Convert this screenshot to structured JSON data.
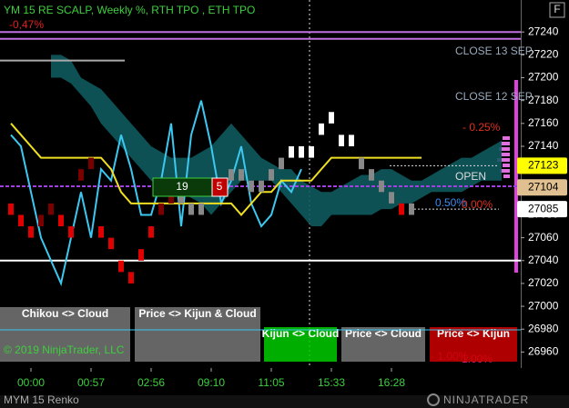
{
  "chart_data": {
    "type": "renko",
    "title": "YM 15 RE SCALP, Weekly %, RTH TPO , ETH TPO",
    "subtitle": "-0,47%",
    "instrument": "MYM 15 Renko",
    "copyright": "© 2019 NinjaTrader, LLC",
    "logo": "NINJATRADER",
    "corner_button": "F",
    "counter": [
      "19",
      "5"
    ],
    "annotations": [
      "CLOSE 13 SEP",
      "CLOSE 12 SEP",
      "- 0.25%",
      "OPEN",
      "0.50%",
      "0.00%",
      "- 1.00%",
      "1.00%"
    ],
    "buttons": [
      "Chikou <> Cloud",
      "Price <> Kijun & Cloud",
      "Kijun <> Cloud",
      "Price <> Cloud",
      "Price <> Kijun"
    ],
    "x": [
      null,
      null,
      "00:00",
      null,
      null,
      null,
      null,
      null,
      "00:57",
      null,
      null,
      null,
      null,
      null,
      "02:56",
      null,
      null,
      null,
      null,
      null,
      "09:10",
      null,
      null,
      null,
      null,
      null,
      "11:05",
      null,
      null,
      null,
      null,
      null,
      "15:33",
      null,
      null,
      null,
      null,
      null,
      "16:28",
      null,
      null,
      null,
      null,
      null,
      null,
      null,
      null,
      null,
      null,
      null
    ],
    "ylim": [
      26946,
      27268
    ],
    "yticks": [
      26960,
      26980,
      27000,
      27020,
      27040,
      27060,
      27080,
      27100,
      27120,
      27140,
      27160,
      27180,
      27200,
      27220,
      27240
    ],
    "bricks": {
      "open": [
        27090,
        27080,
        27070,
        27070,
        27080,
        27080,
        27070,
        27110,
        27120,
        27070,
        27060,
        27040,
        27030,
        27040,
        27060,
        27080,
        27090,
        27100,
        27090,
        27080,
        27110,
        27100,
        27110,
        27120,
        27110,
        27100,
        27110,
        27120,
        27130,
        27140,
        27130,
        27150,
        27160,
        27150,
        27140,
        27130,
        27120,
        27110,
        27100,
        27090,
        27090,
        null,
        null,
        null,
        null,
        null,
        null,
        null,
        null,
        null
      ],
      "close": [
        27080,
        27070,
        27060,
        27080,
        27090,
        27070,
        27060,
        27120,
        27130,
        27060,
        27050,
        27030,
        27020,
        27050,
        27070,
        27090,
        27100,
        27090,
        27080,
        27090,
        27100,
        27110,
        27120,
        27110,
        27100,
        27110,
        27120,
        27130,
        27140,
        27130,
        27140,
        27160,
        27170,
        27140,
        27150,
        27120,
        27110,
        27100,
        27090,
        27080,
        27080,
        null,
        null,
        null,
        null,
        null,
        null,
        null,
        null,
        null
      ],
      "colors": [
        "#e00000",
        "#e00000",
        "#e00000",
        "#7a0000",
        "#7a0000",
        "#e00000",
        "#e00000",
        "#7a0000",
        "#7a0000",
        "#e00000",
        "#e00000",
        "#e00000",
        "#e00000",
        "#e00000",
        "#e00000",
        "#7a0000",
        "#7a0000",
        "#888888",
        "#888888",
        "#888888",
        "#e00000",
        "#888888",
        "#888888",
        "#888888",
        "#888888",
        "#888888",
        "#888888",
        "#888888",
        "#ffffff",
        "#ffffff",
        "#ffffff",
        "#ffffff",
        "#ffffff",
        "#ffffff",
        "#ffffff",
        "#888888",
        "#888888",
        "#888888",
        "#888888",
        "#e00000",
        "#888888",
        null,
        null,
        null,
        null,
        null,
        null,
        null,
        null,
        null
      ]
    },
    "cloud": {
      "color": "#0e5a5e",
      "upper": [
        null,
        null,
        null,
        null,
        27220,
        27220,
        27215,
        27200,
        27195,
        27190,
        27180,
        27170,
        27160,
        27150,
        27140,
        27135,
        27130,
        27130,
        27130,
        27135,
        27140,
        27150,
        27160,
        27150,
        27140,
        27130,
        27125,
        27120,
        27120,
        27110,
        27105,
        27100,
        27100,
        27105,
        27110,
        27115,
        27115,
        27120,
        27120,
        27115,
        27110,
        27110,
        27115,
        27120,
        27125,
        27130,
        27130,
        27135,
        27140,
        27145
      ],
      "lower": [
        null,
        null,
        null,
        null,
        27200,
        27200,
        27195,
        27185,
        27175,
        27160,
        27150,
        27140,
        27130,
        27120,
        27110,
        27105,
        27100,
        27100,
        27095,
        27090,
        27080,
        27090,
        27100,
        27110,
        27110,
        27110,
        27110,
        27100,
        27090,
        27080,
        27070,
        27070,
        27080,
        27080,
        27080,
        27080,
        27080,
        27085,
        27085,
        27090,
        27090,
        27095,
        27100,
        27100,
        27100,
        27100,
        27105,
        27110,
        27110,
        27110
      ]
    },
    "series": [
      {
        "color": "#3cc8f0",
        "values": [
          27150,
          27140,
          27100,
          27060,
          27040,
          27020,
          27060,
          27100,
          27060,
          27120,
          27110,
          27150,
          27120,
          27080,
          27080,
          27110,
          27160,
          27070,
          27150,
          27180,
          27140,
          27090,
          27110,
          27140,
          27090,
          27070,
          27080,
          27110,
          27100,
          27120,
          null,
          null,
          null,
          null,
          null,
          null,
          null,
          null,
          null,
          null,
          null,
          null,
          null,
          null,
          null,
          null,
          null,
          null,
          null,
          null
        ]
      },
      {
        "color": "#f0e020",
        "values": [
          27160,
          27150,
          27140,
          27130,
          27130,
          27130,
          27130,
          27130,
          27130,
          27130,
          27120,
          27100,
          27090,
          27090,
          27090,
          27090,
          27090,
          27090,
          27090,
          27090,
          27090,
          27090,
          27090,
          27080,
          27090,
          27100,
          27100,
          27110,
          27110,
          27110,
          27110,
          27120,
          27130,
          27130,
          27130,
          27130,
          27130,
          27130,
          27130,
          27130,
          27130,
          27130,
          null,
          null,
          null,
          null,
          null,
          null,
          null,
          null
        ]
      }
    ],
    "levels": [
      {
        "value": 27240,
        "color": "#c070e0"
      },
      {
        "value": 27234,
        "color": "#c070e0"
      },
      {
        "value": 27215,
        "color": "#aaaaaa"
      },
      {
        "value": 27105,
        "color": "#a040e0"
      },
      {
        "value": 27040,
        "color": "#ffffff"
      }
    ],
    "price_markers": [
      {
        "value": 27123,
        "color": "#ffff00"
      },
      {
        "value": 27104,
        "color": "#e0c090"
      },
      {
        "value": 27085,
        "color": "#ffffff"
      }
    ]
  }
}
